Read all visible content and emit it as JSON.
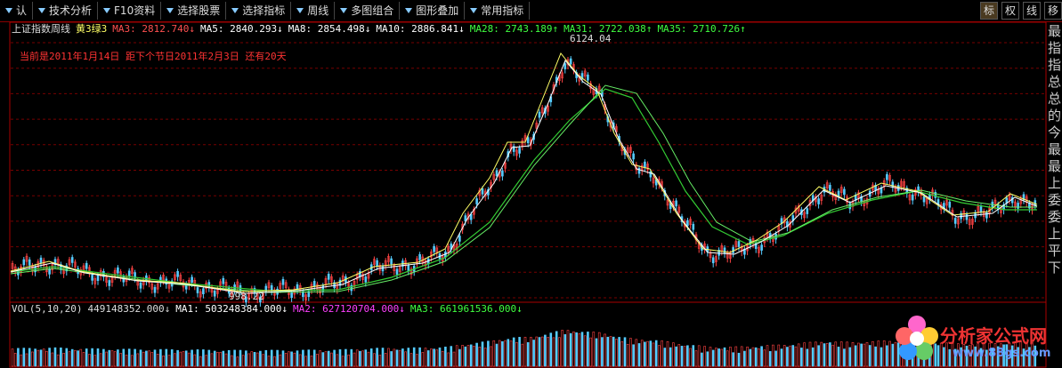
{
  "toolbar": {
    "items": [
      "认",
      "技术分析",
      "F10资料",
      "选择股票",
      "选择指标",
      "周线",
      "多图组合",
      "图形叠加",
      "常用指标"
    ],
    "right_buttons": [
      "标",
      "权",
      "线",
      "移"
    ]
  },
  "chart": {
    "title": "上证指数周线",
    "signal": "黄3绿3",
    "ma": [
      {
        "label": "MA3: 2812.740↓",
        "color": "#ff5050"
      },
      {
        "label": "MA5: 2840.293↓",
        "color": "#ffffff"
      },
      {
        "label": "MA8: 2854.498↓",
        "color": "#ffffff"
      },
      {
        "label": "MA10: 2886.841↓",
        "color": "#ffffff"
      },
      {
        "label": "MA28: 2743.189↑",
        "color": "#40ff40"
      },
      {
        "label": "MA31: 2722.038↑",
        "color": "#40ff40"
      },
      {
        "label": "MA35: 2710.726↑",
        "color": "#40ff40"
      }
    ],
    "note": "当前是2011年1月14日 距下个节日2011年2月3日 还有20天",
    "high_label": "6124.04",
    "low_label": "998.22"
  },
  "volume": {
    "title": "VOL(5,10,20)",
    "value": "449148352.000↓",
    "ma": [
      {
        "label": "MA1: 503248384.000↓",
        "color": "#ffffff"
      },
      {
        "label": "MA2: 627120704.000↓",
        "color": "#ff40ff"
      },
      {
        "label": "MA3: 661961536.000↓",
        "color": "#40ff40"
      }
    ]
  },
  "side_text": [
    "最",
    "指",
    "指",
    "总",
    "总",
    "的",
    "今",
    "最",
    "最",
    "上",
    "委",
    "委",
    "上",
    "平",
    "下"
  ],
  "watermark": {
    "name": "分析家公式网",
    "url": "www.88gs.com"
  }
}
